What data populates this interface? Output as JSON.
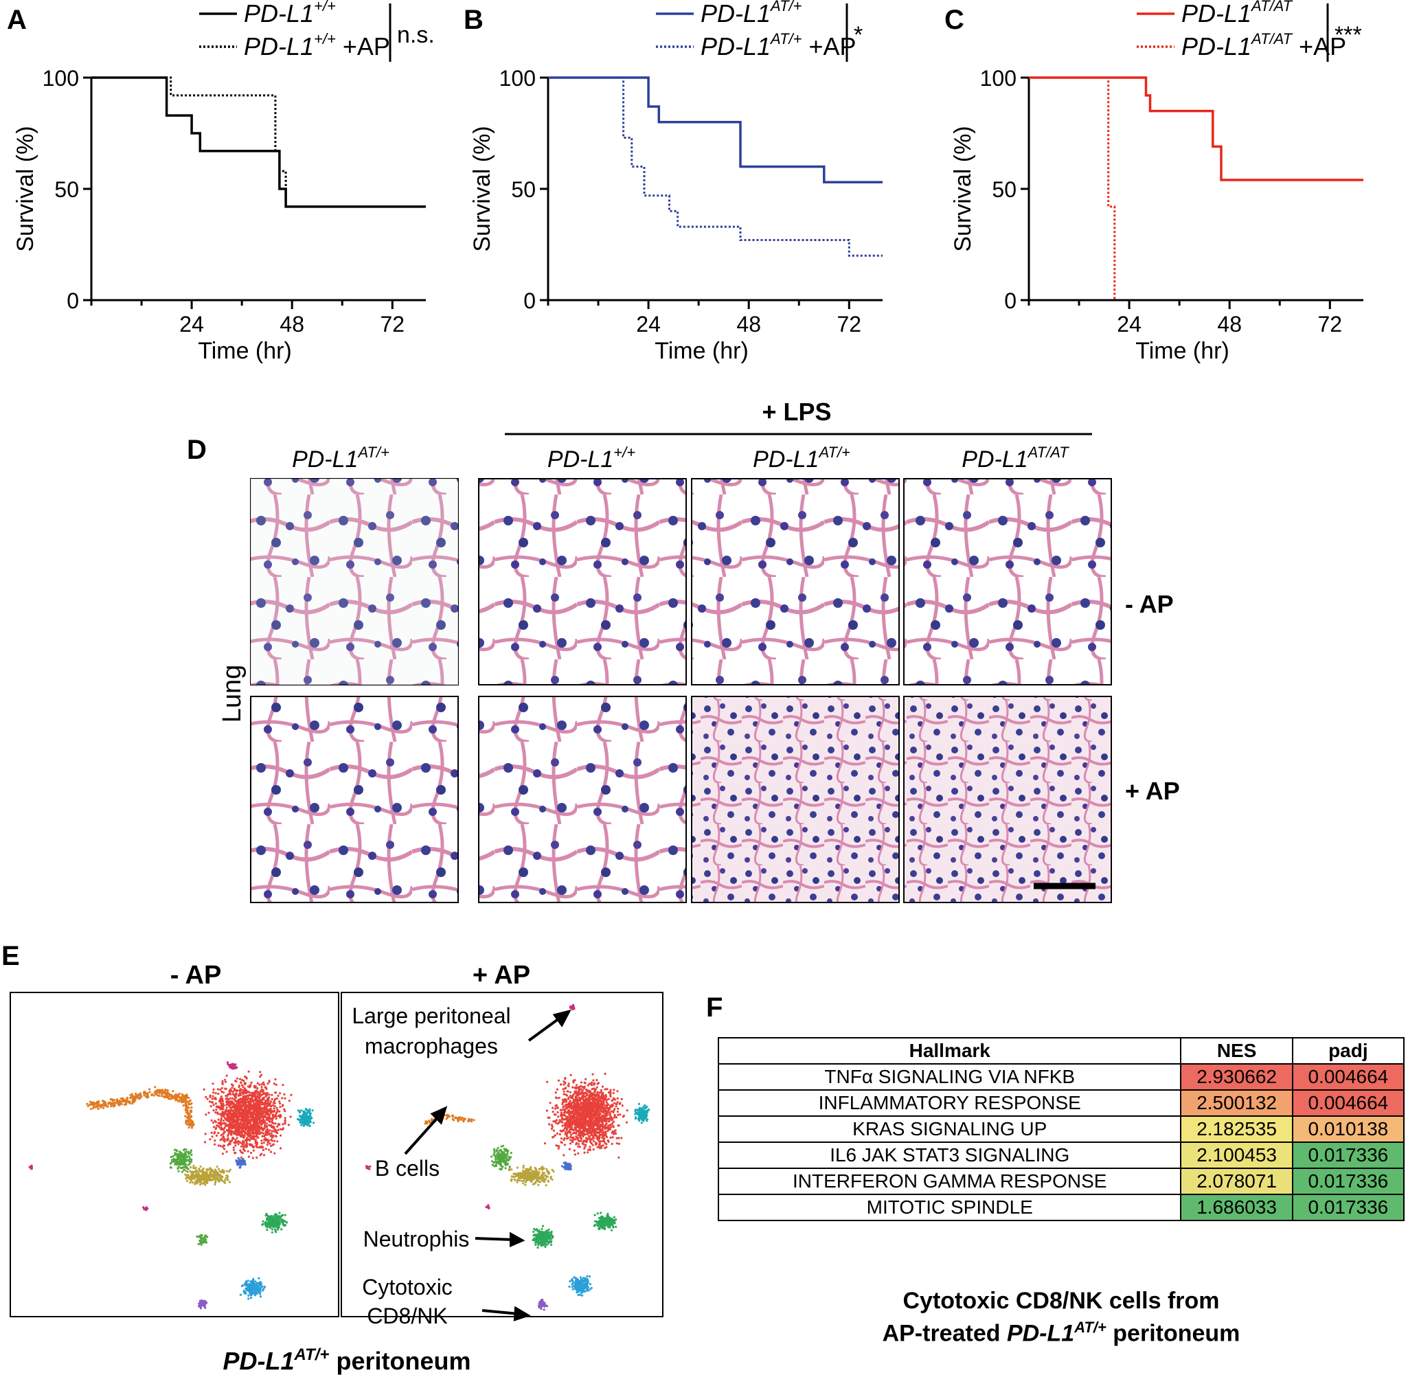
{
  "panels": {
    "A": {
      "letter": "A",
      "legend": [
        {
          "label": "PD-L1",
          "sup": "+/+",
          "extra": "",
          "style": "solid"
        },
        {
          "label": "PD-L1",
          "sup": "+/+",
          "extra": " +AP",
          "style": "dotted"
        }
      ],
      "sig": "n.s.",
      "color": "#000000"
    },
    "B": {
      "letter": "B",
      "legend": [
        {
          "label": "PD-L1",
          "sup": "AT/+",
          "extra": "",
          "style": "solid"
        },
        {
          "label": "PD-L1",
          "sup": "AT/+",
          "extra": " +AP",
          "style": "dotted"
        }
      ],
      "sig": "*",
      "color": "#2e3f9c"
    },
    "C": {
      "letter": "C",
      "legend": [
        {
          "label": "PD-L1",
          "sup": "AT/AT",
          "extra": "",
          "style": "solid"
        },
        {
          "label": "PD-L1",
          "sup": "AT/AT",
          "extra": " +AP",
          "style": "dotted"
        }
      ],
      "sig": "***",
      "color": "#e8261b"
    }
  },
  "chart_data": [
    {
      "type": "line",
      "panel": "A",
      "xlabel": "Time (hr)",
      "ylabel": "Survival (%)",
      "xlim": [
        0,
        80
      ],
      "ylim": [
        0,
        100
      ],
      "xticks": [
        24,
        48,
        72
      ],
      "yticks": [
        0,
        50,
        100
      ],
      "series": [
        {
          "name": "PD-L1+/+",
          "style": "solid",
          "points": [
            [
              0,
              100
            ],
            [
              18,
              100
            ],
            [
              18,
              83
            ],
            [
              24,
              83
            ],
            [
              24,
              75
            ],
            [
              26,
              75
            ],
            [
              26,
              67
            ],
            [
              45,
              67
            ],
            [
              45,
              50
            ],
            [
              46.5,
              50
            ],
            [
              46.5,
              42
            ],
            [
              80,
              42
            ]
          ]
        },
        {
          "name": "PD-L1+/+ +AP",
          "style": "dotted",
          "points": [
            [
              0,
              100
            ],
            [
              19,
              100
            ],
            [
              19,
              92
            ],
            [
              44,
              92
            ],
            [
              44,
              67
            ],
            [
              45,
              67
            ],
            [
              45,
              58
            ],
            [
              46.5,
              58
            ],
            [
              46.5,
              42
            ],
            [
              80,
              42
            ]
          ]
        }
      ]
    },
    {
      "type": "line",
      "panel": "B",
      "xlabel": "Time (hr)",
      "ylabel": "Survival (%)",
      "xlim": [
        0,
        80
      ],
      "ylim": [
        0,
        100
      ],
      "xticks": [
        24,
        48,
        72
      ],
      "yticks": [
        0,
        50,
        100
      ],
      "series": [
        {
          "name": "PD-L1AT/+",
          "style": "solid",
          "points": [
            [
              0,
              100
            ],
            [
              24,
              100
            ],
            [
              24,
              87
            ],
            [
              26.5,
              87
            ],
            [
              26.5,
              80
            ],
            [
              46,
              80
            ],
            [
              46,
              60
            ],
            [
              66,
              60
            ],
            [
              66,
              53
            ],
            [
              80,
              53
            ]
          ]
        },
        {
          "name": "PD-L1AT/+ +AP",
          "style": "dotted",
          "points": [
            [
              0,
              100
            ],
            [
              18,
              100
            ],
            [
              18,
              73
            ],
            [
              20,
              73
            ],
            [
              20,
              60
            ],
            [
              23,
              60
            ],
            [
              23,
              47
            ],
            [
              29,
              47
            ],
            [
              29,
              40
            ],
            [
              31,
              40
            ],
            [
              31,
              33
            ],
            [
              46,
              33
            ],
            [
              46,
              27
            ],
            [
              72,
              27
            ],
            [
              72,
              20
            ],
            [
              80,
              20
            ]
          ]
        }
      ]
    },
    {
      "type": "line",
      "panel": "C",
      "xlabel": "Time (hr)",
      "ylabel": "Survival (%)",
      "xlim": [
        0,
        80
      ],
      "ylim": [
        0,
        100
      ],
      "xticks": [
        24,
        48,
        72
      ],
      "yticks": [
        0,
        50,
        100
      ],
      "series": [
        {
          "name": "PD-L1AT/AT",
          "style": "solid",
          "points": [
            [
              0,
              100
            ],
            [
              28,
              100
            ],
            [
              28,
              92
            ],
            [
              29,
              92
            ],
            [
              29,
              85
            ],
            [
              44,
              85
            ],
            [
              44,
              69
            ],
            [
              46,
              69
            ],
            [
              46,
              54
            ],
            [
              80,
              54
            ]
          ]
        },
        {
          "name": "PD-L1AT/AT +AP",
          "style": "dotted",
          "points": [
            [
              0,
              100
            ],
            [
              19,
              100
            ],
            [
              19,
              42
            ],
            [
              20.5,
              42
            ],
            [
              20.5,
              0
            ],
            [
              20.5,
              0
            ]
          ]
        }
      ]
    }
  ],
  "panel_d": {
    "letter": "D",
    "lps_label": "+ LPS",
    "genotype_base": "PD-L1",
    "columns": [
      {
        "sup": "AT/+"
      },
      {
        "sup": "+/+"
      },
      {
        "sup": "AT/+"
      },
      {
        "sup": "AT/AT"
      }
    ],
    "rows": [
      "- AP",
      "+ AP"
    ],
    "tissue": "Lung"
  },
  "panel_e": {
    "letter": "E",
    "left_title": "- AP",
    "right_title": "+ AP",
    "annotations": {
      "macro_line1": "Large peritoneal",
      "macro_line2": "macrophages",
      "bcells": "B cells",
      "neutro": "Neutrophis",
      "cyto_line1": "Cytotoxic",
      "cyto_line2": "CD8/NK"
    },
    "caption_gene": "PD-L1",
    "caption_sup": "AT/+",
    "caption_rest": " peritoneum",
    "cluster_colors": {
      "red": "#e8403a",
      "orange": "#e07b22",
      "teal": "#1ba9b8",
      "green": "#53a93f",
      "olive": "#b9a43a",
      "blue": "#4a6fcf",
      "green2": "#2ea85a",
      "cyan": "#2b9fd8",
      "purple": "#8a5cc4",
      "magenta": "#c8307f"
    }
  },
  "panel_f": {
    "letter": "F",
    "headers": [
      "Hallmark",
      "NES",
      "padj"
    ],
    "rows": [
      {
        "hallmark": "TNFα SIGNALING VIA NFKB",
        "nes": "2.930662",
        "padj": "0.004664",
        "nes_color": "#ec6a5f",
        "padj_color": "#ec6a5f"
      },
      {
        "hallmark": "INFLAMMATORY RESPONSE",
        "nes": "2.500132",
        "padj": "0.004664",
        "nes_color": "#f2a26e",
        "padj_color": "#ec6a5f"
      },
      {
        "hallmark": "KRAS SIGNALING UP",
        "nes": "2.182535",
        "padj": "0.010138",
        "nes_color": "#f1e57c",
        "padj_color": "#f4b877"
      },
      {
        "hallmark": "IL6 JAK STAT3 SIGNALING",
        "nes": "2.100453",
        "padj": "0.017336",
        "nes_color": "#ece27a",
        "padj_color": "#5fba6e"
      },
      {
        "hallmark": "INTERFERON GAMMA RESPONSE",
        "nes": "2.078071",
        "padj": "0.017336",
        "nes_color": "#e9e07a",
        "padj_color": "#5fba6e"
      },
      {
        "hallmark": "MITOTIC SPINDLE",
        "nes": "1.686033",
        "padj": "0.017336",
        "nes_color": "#5fba6e",
        "padj_color": "#5fba6e"
      }
    ],
    "caption_line1": "Cytotoxic CD8/NK cells from",
    "caption_line2_pre": "AP-treated ",
    "caption_gene": "PD-L1",
    "caption_sup": "AT/+",
    "caption_line2_post": " peritoneum"
  }
}
